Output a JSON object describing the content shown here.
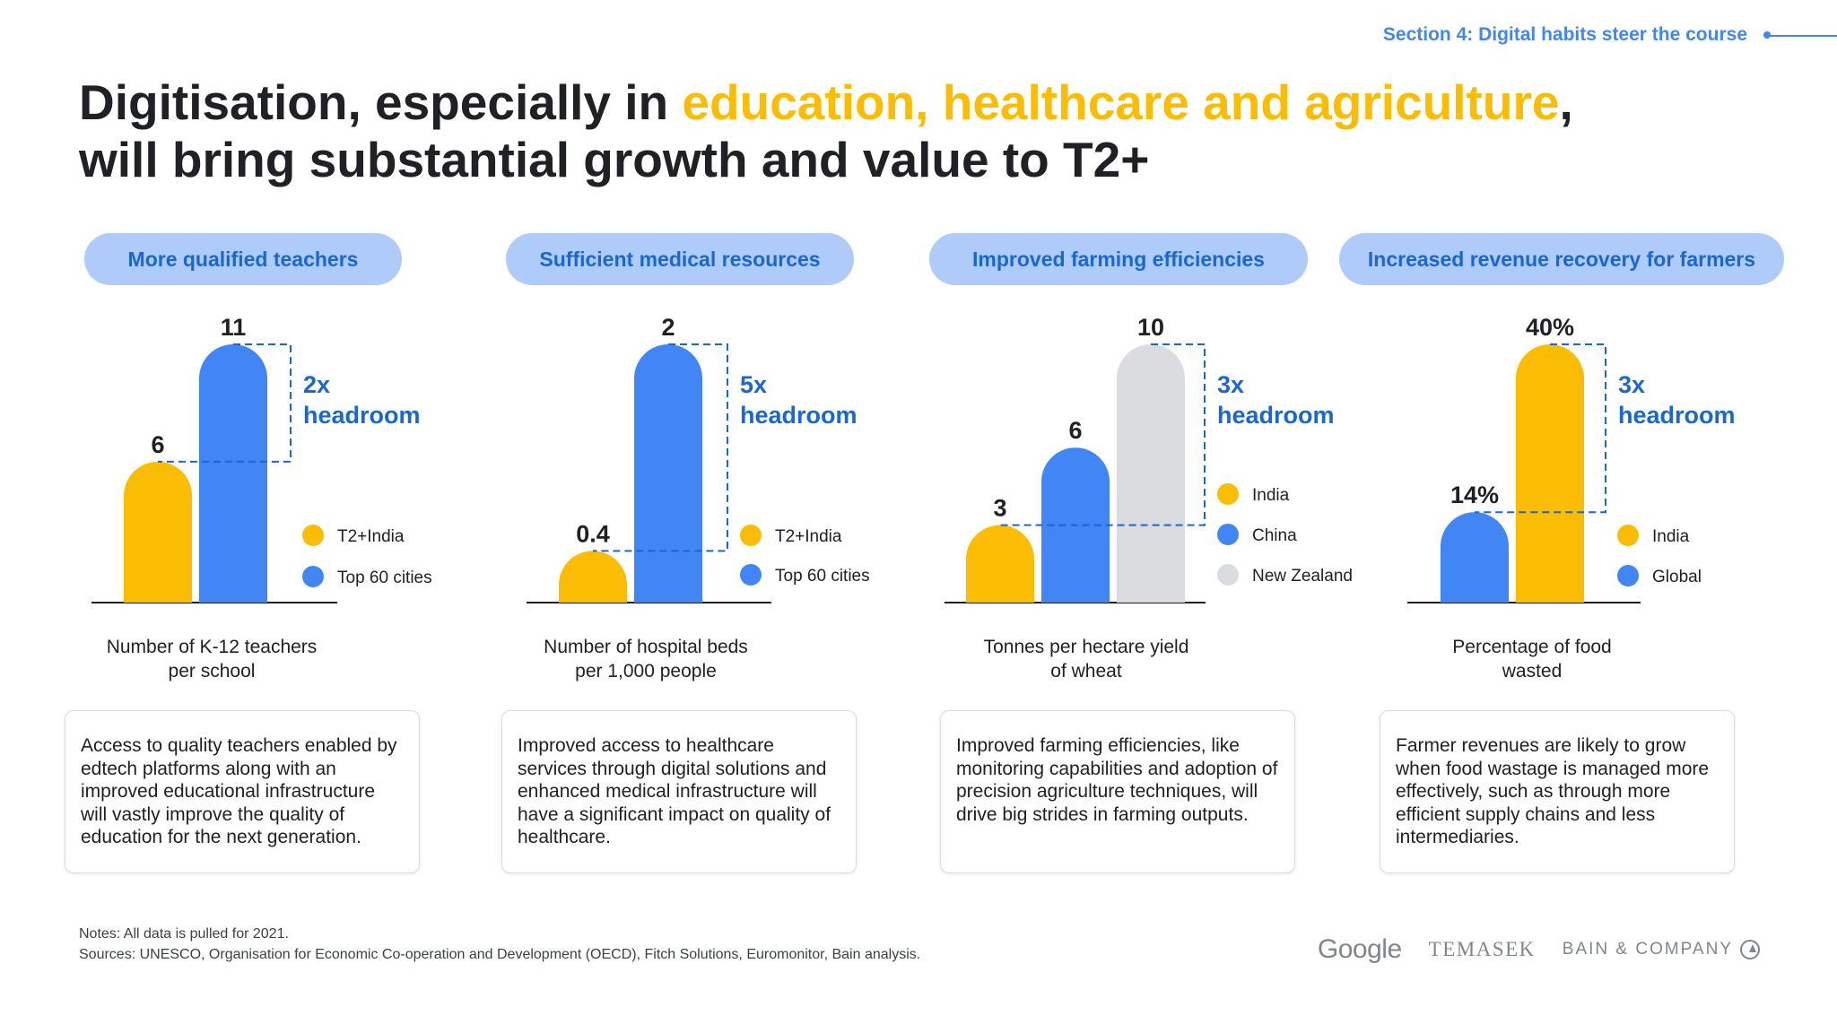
{
  "header": {
    "section": "Section 4: Digital habits steer the course"
  },
  "title": {
    "part1": "Digitisation, especially in ",
    "highlight": "education, healthcare and agriculture",
    "part2": ",",
    "line2": "will bring substantial growth and value to T2+"
  },
  "colors": {
    "yellow": "#fbbc04",
    "blue": "#4285f4",
    "grey": "#dadce0",
    "accent": "#1967d2",
    "pill_bg": "#aecbfa"
  },
  "panels": [
    {
      "pill": "More qualified teachers",
      "caption_l1": "Number of K-12 teachers",
      "caption_l2": "per school",
      "card": "Access to quality teachers enabled by edtech platforms along with an improved educational infrastructure will vastly improve the quality of education for the next generation."
    },
    {
      "pill": "Sufficient medical resources",
      "caption_l1": "Number of hospital beds",
      "caption_l2": "per 1,000 people",
      "card": "Improved access to healthcare services through digital solutions and enhanced medical infrastructure will have a significant impact on quality of healthcare."
    },
    {
      "pill": "Improved farming efficiencies",
      "caption_l1": "Tonnes per hectare yield",
      "caption_l2": "of wheat",
      "card": "Improved farming efficiencies, like monitoring capabilities and adoption of precision agriculture techniques, will drive big strides in farming outputs."
    },
    {
      "pill": "Increased revenue recovery for farmers",
      "caption_l1": "Percentage of food",
      "caption_l2": "wasted",
      "card": "Farmer revenues are likely to grow when food wastage is managed more effectively, such as through more efficient supply chains and less intermediaries."
    }
  ],
  "chart_data": [
    {
      "type": "bar",
      "categories": [
        "T2+India",
        "Top 60 cities"
      ],
      "values": [
        6,
        11
      ],
      "value_labels": [
        "6",
        "11"
      ],
      "colors": [
        "#fbbc04",
        "#4285f4"
      ],
      "headroom_l1": "2x",
      "headroom_l2": "headroom",
      "xlabel": "Number of K-12 teachers per school",
      "legend": [
        "T2+India",
        "Top 60 cities"
      ],
      "legend_placement": "right"
    },
    {
      "type": "bar",
      "categories": [
        "T2+India",
        "Top 60 cities"
      ],
      "values": [
        0.4,
        2
      ],
      "value_labels": [
        "0.4",
        "2"
      ],
      "colors": [
        "#fbbc04",
        "#4285f4"
      ],
      "headroom_l1": "5x",
      "headroom_l2": "headroom",
      "xlabel": "Number of hospital beds per 1,000 people",
      "legend": [
        "T2+India",
        "Top 60 cities"
      ],
      "legend_placement": "right"
    },
    {
      "type": "bar",
      "categories": [
        "India",
        "China",
        "New Zealand"
      ],
      "values": [
        3,
        6,
        10
      ],
      "value_labels": [
        "3",
        "6",
        "10"
      ],
      "colors": [
        "#fbbc04",
        "#4285f4",
        "#dadce0"
      ],
      "headroom_l1": "3x",
      "headroom_l2": "headroom",
      "xlabel": "Tonnes per hectare yield of wheat",
      "legend": [
        "India",
        "China",
        "New Zealand"
      ],
      "legend_placement": "right"
    },
    {
      "type": "bar",
      "categories": [
        "Global",
        "India"
      ],
      "values": [
        14,
        40
      ],
      "value_labels": [
        "14%",
        "40%"
      ],
      "colors": [
        "#4285f4",
        "#fbbc04"
      ],
      "headroom_l1": "3x",
      "headroom_l2": "headroom",
      "xlabel": "Percentage of food wasted",
      "legend": [
        "India",
        "Global"
      ],
      "legend_colors": [
        "#fbbc04",
        "#4285f4"
      ],
      "legend_placement": "right"
    }
  ],
  "footer": {
    "notes": "Notes: All data is pulled for 2021.",
    "sources": "Sources: UNESCO, Organisation for Economic Co-operation and Development (OECD), Fitch Solutions, Euromonitor, Bain analysis.",
    "logo_google": "Google",
    "logo_temasek": "TEMASEK",
    "logo_bain": "BAIN & COMPANY"
  }
}
